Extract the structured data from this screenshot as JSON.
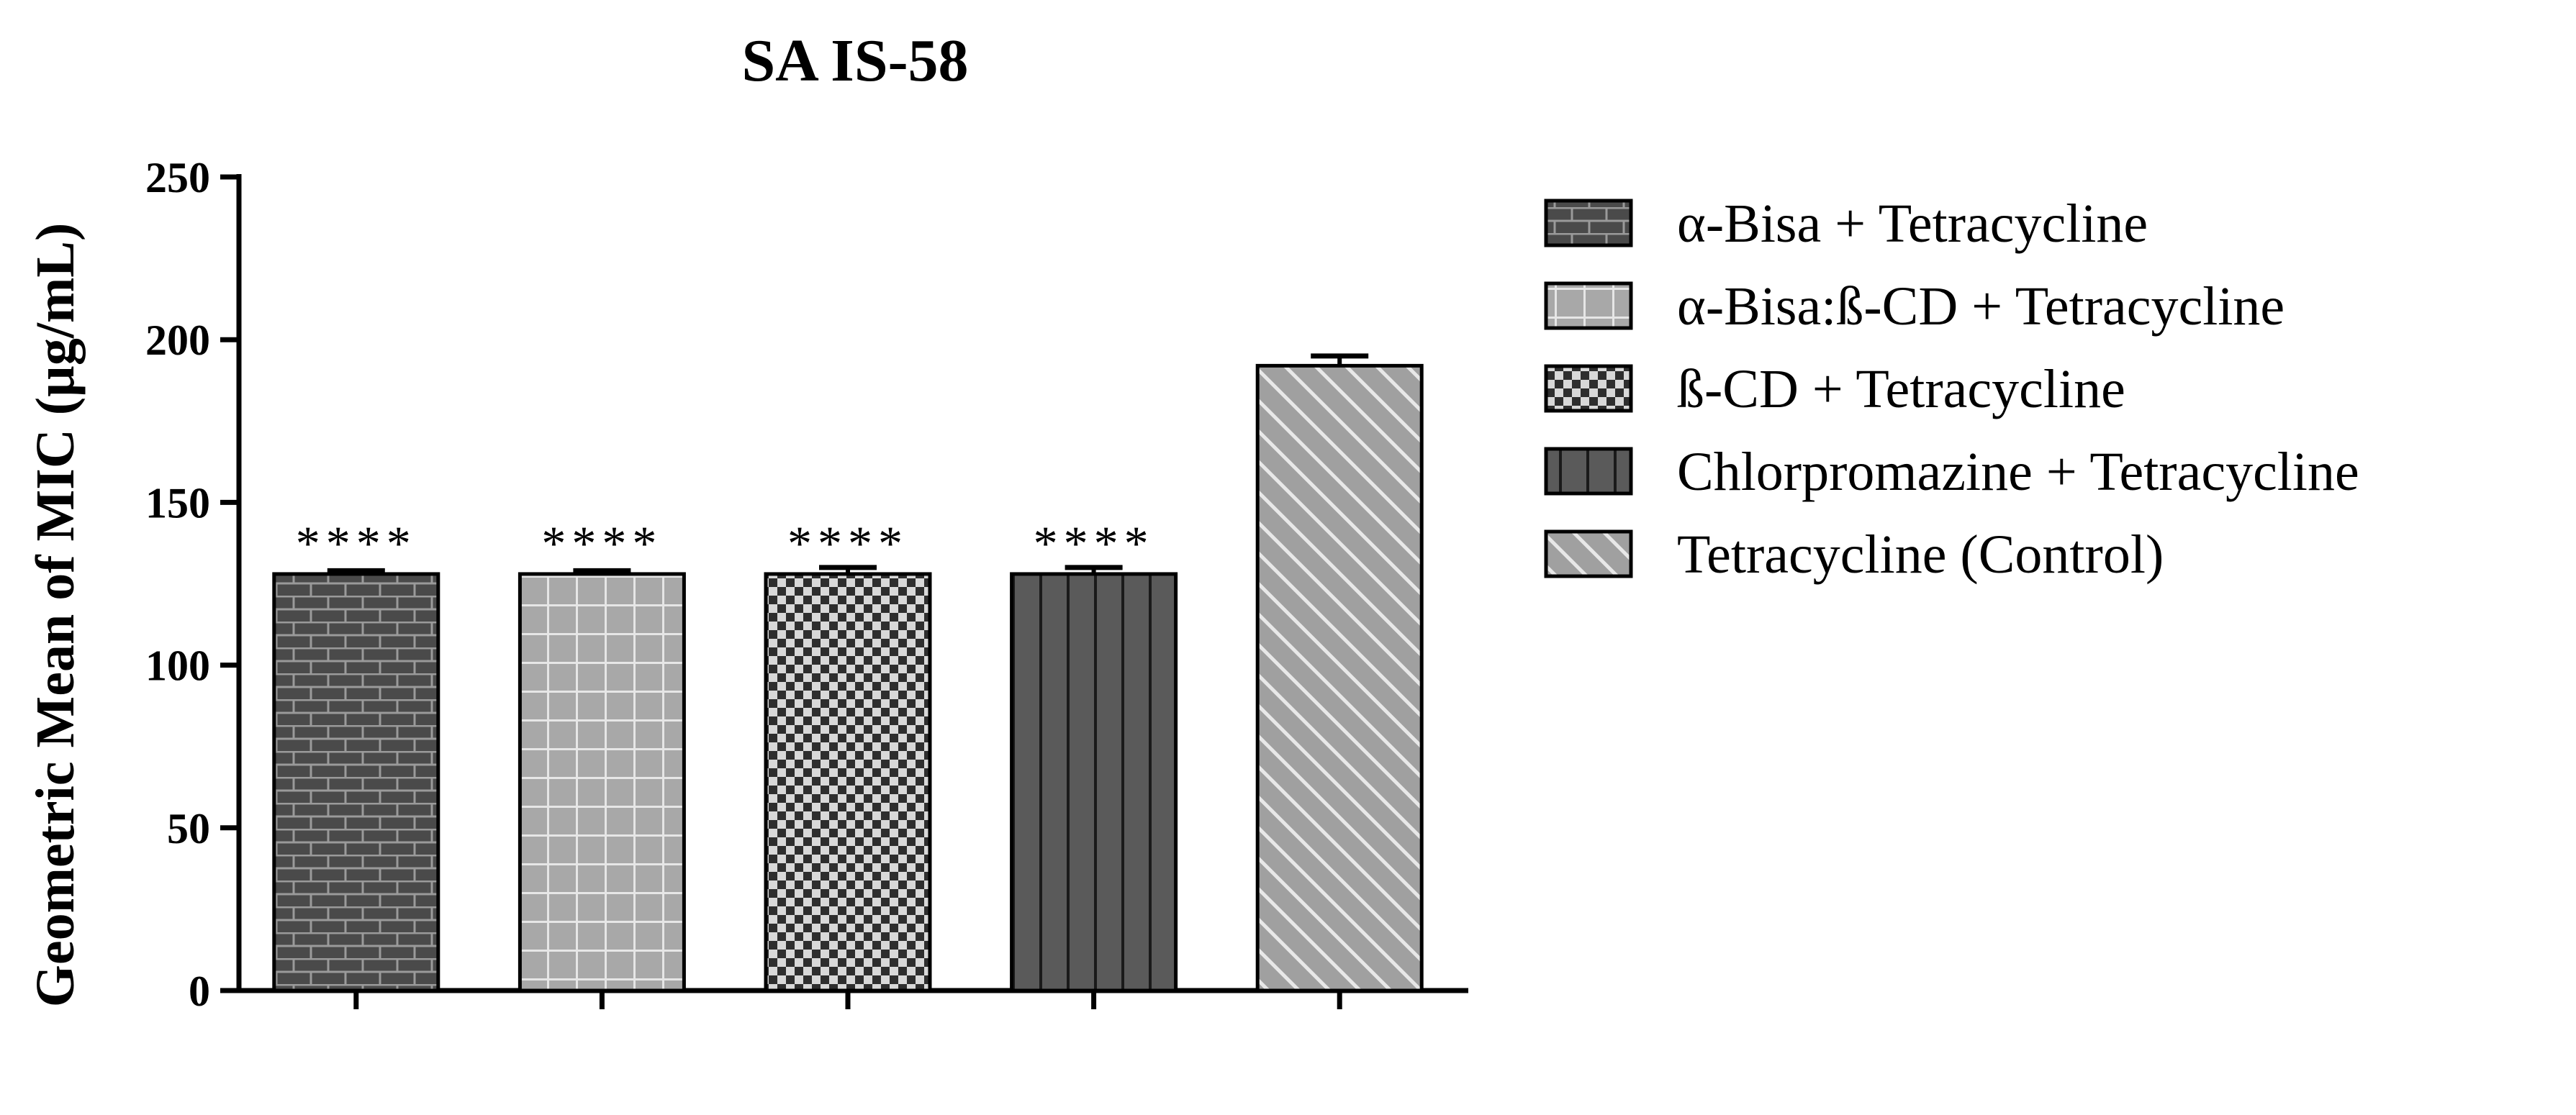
{
  "chart_data": {
    "type": "bar",
    "title": "SA IS-58",
    "xlabel": "",
    "ylabel": "Geometric Mean of MIC (µg/mL)",
    "ylim": [
      0,
      250
    ],
    "yticks": [
      0,
      50,
      100,
      150,
      200,
      250
    ],
    "grid": false,
    "legend_position": "right",
    "categories": [
      "α-Bisa + Tetracycline",
      "α-Bisa:ß-CD + Tetracycline",
      "ß-CD + Tetracycline",
      "Chlorpromazine + Tetracycline",
      "Tetracycline (Control)"
    ],
    "values": [
      128,
      128,
      128,
      128,
      192
    ],
    "error": [
      1,
      1,
      2,
      2,
      3
    ],
    "annotations": [
      "****",
      "****",
      "****",
      "****",
      ""
    ],
    "patterns": [
      "brick",
      "grid",
      "checker",
      "vertical-stripes",
      "diagonal-stripes"
    ],
    "colors": {
      "brick": "#4a4a4a",
      "grid": "#a8a8a8",
      "checker": "#3a3a3a",
      "vertical-stripes": "#5a5a5a",
      "diagonal-stripes": "#a0a0a0"
    }
  }
}
